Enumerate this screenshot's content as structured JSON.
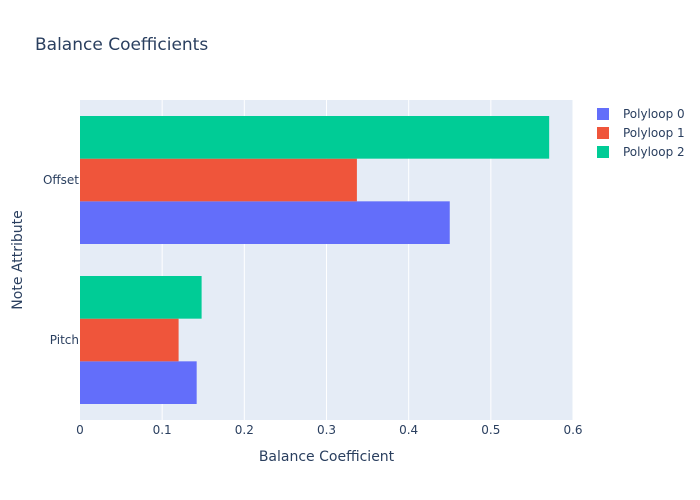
{
  "chart_data": {
    "type": "bar",
    "orientation": "horizontal",
    "title": "Balance Coefficients",
    "xlabel": "Balance Coefficient",
    "ylabel": "Note Attribute",
    "categories": [
      "Offset",
      "Pitch"
    ],
    "series": [
      {
        "name": "Polyloop 0",
        "color": "#636efa",
        "values": [
          0.45,
          0.142
        ]
      },
      {
        "name": "Polyloop 1",
        "color": "#ef553b",
        "values": [
          0.337,
          0.12
        ]
      },
      {
        "name": "Polyloop 2",
        "color": "#00cc96",
        "values": [
          0.571,
          0.148
        ]
      }
    ],
    "xlim": [
      0,
      0.6
    ],
    "xticks": [
      0,
      0.1,
      0.2,
      0.3,
      0.4,
      0.5,
      0.6
    ],
    "xtick_labels": [
      "0",
      "0.1",
      "0.2",
      "0.3",
      "0.4",
      "0.5",
      "0.6"
    ],
    "grid": true,
    "legend_position": "top-right",
    "plot_background": "#e5ecf6"
  }
}
